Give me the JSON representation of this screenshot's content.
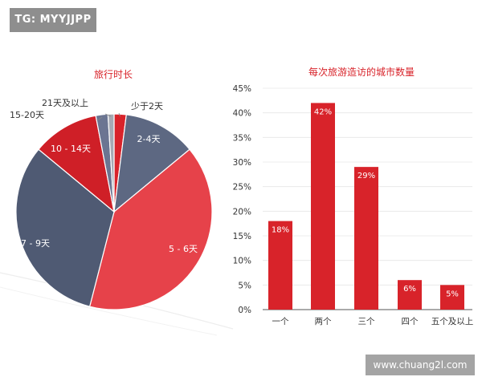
{
  "watermark_top": "TG: MYYJJPP",
  "watermark_bottom": "www.chuang2l.com",
  "colors": {
    "red": "#d8232a",
    "red_light": "#e6424a",
    "slate": "#4f5a73",
    "slate_light": "#6b7592",
    "gray": "#a6aab4",
    "axis": "#555555",
    "grid": "#e6e6e6"
  },
  "chart_data": [
    {
      "type": "pie",
      "title": "旅行时长",
      "slices": [
        {
          "label": "少于2天",
          "value": 2,
          "color": "#d8232a"
        },
        {
          "label": "2-4天",
          "value": 12,
          "color": "#5d6882"
        },
        {
          "label": "5 - 6天",
          "value": 40,
          "color": "#e6424a"
        },
        {
          "label": "7 - 9天",
          "value": 32,
          "color": "#4f5a73"
        },
        {
          "label": "10 - 14天",
          "value": 11,
          "color": "#cf1f27"
        },
        {
          "label": "15-20天",
          "value": 2,
          "color": "#6b7592"
        },
        {
          "label": "21天及以上",
          "value": 1,
          "color": "#a6aab4"
        }
      ]
    },
    {
      "type": "bar",
      "title": "每次旅游造访的城市数量",
      "categories": [
        "一个",
        "两个",
        "三个",
        "四个",
        "五个及以上"
      ],
      "values": [
        18,
        42,
        29,
        6,
        5
      ],
      "data_labels": [
        "18%",
        "42%",
        "29%",
        "6%",
        "5%"
      ],
      "y_ticks": [
        "0%",
        "5%",
        "10%",
        "15%",
        "20%",
        "25%",
        "30%",
        "35%",
        "40%",
        "45%"
      ],
      "ylim": [
        0,
        45
      ],
      "grid": true,
      "bar_color": "#d8232a"
    }
  ]
}
